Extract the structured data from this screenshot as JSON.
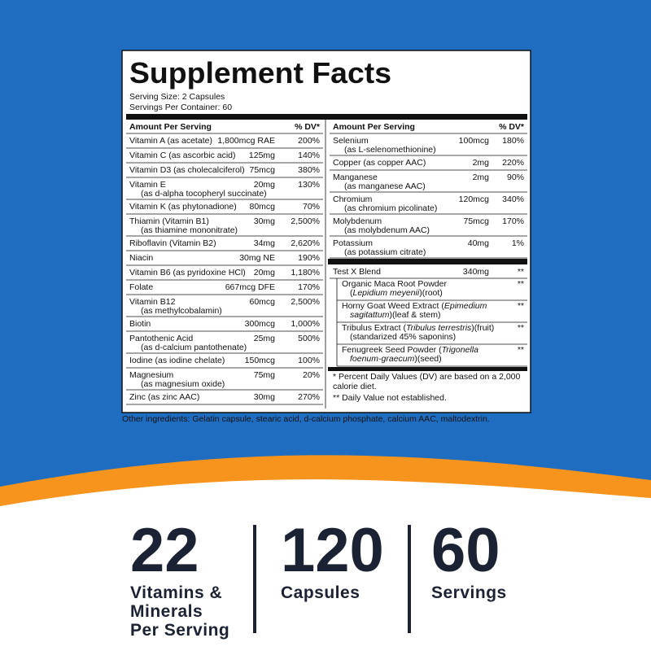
{
  "title": "Supplement Facts",
  "serving_size": "Serving Size: 2 Capsules",
  "servings_per_container": "Servings Per Container: 60",
  "left_column": {
    "header": [
      "Amount Per Serving",
      "% DV*"
    ],
    "rows": [
      {
        "name": "Vitamin A (as acetate)",
        "amount": "1,800mcg RAE",
        "dv": "200%"
      },
      {
        "name": "Vitamin C (as ascorbic acid)",
        "amount": "125mg",
        "dv": "140%"
      },
      {
        "name": "Vitamin D3 (as cholecalciferol)",
        "amount": "75mcg",
        "dv": "380%"
      },
      {
        "name": "Vitamin E",
        "sub": "(as d-alpha tocopheryl succinate)",
        "amount": "20mg",
        "dv": "130%"
      },
      {
        "name": "Vitamin K (as phytonadione)",
        "amount": "80mcg",
        "dv": "70%"
      },
      {
        "name": "Thiamin (Vitamin B1)",
        "sub": "(as thiamine mononitrate)",
        "amount": "30mg",
        "dv": "2,500%"
      },
      {
        "name": "Riboflavin (Vitamin B2)",
        "amount": "34mg",
        "dv": "2,620%"
      },
      {
        "name": "Niacin",
        "amount": "30mg NE",
        "dv": "190%"
      },
      {
        "name": "Vitamin B6 (as pyridoxine HCl)",
        "amount": "20mg",
        "dv": "1,180%"
      },
      {
        "name": "Folate",
        "amount": "667mcg DFE",
        "dv": "170%"
      },
      {
        "name": "Vitamin B12",
        "sub": "(as methylcobalamin)",
        "amount": "60mcg",
        "dv": "2,500%"
      },
      {
        "name": "Biotin",
        "amount": "300mcg",
        "dv": "1,000%"
      },
      {
        "name": "Pantothenic Acid",
        "sub": "(as d-calcium pantothenate)",
        "amount": "25mg",
        "dv": "500%"
      },
      {
        "name": "Iodine (as iodine chelate)",
        "amount": "150mcg",
        "dv": "100%"
      },
      {
        "name": "Magnesium",
        "sub": "(as magnesium oxide)",
        "amount": "75mg",
        "dv": "20%"
      },
      {
        "name": "Zinc (as zinc AAC)",
        "amount": "30mg",
        "dv": "270%"
      }
    ]
  },
  "right_column": {
    "header": [
      "Amount Per Serving",
      "% DV*"
    ],
    "rows": [
      {
        "name": "Selenium",
        "sub": "(as L-selenomethionine)",
        "amount": "100mcg",
        "dv": "180%"
      },
      {
        "name": "Copper (as copper AAC)",
        "amount": "2mg",
        "dv": "220%"
      },
      {
        "name": "Manganese",
        "sub": "(as manganese AAC)",
        "amount": "2mg",
        "dv": "90%"
      },
      {
        "name": "Chromium",
        "sub": "(as chromium picolinate)",
        "amount": "120mcg",
        "dv": "340%"
      },
      {
        "name": "Molybdenum",
        "sub": "(as molybdenum AAC)",
        "amount": "75mcg",
        "dv": "170%"
      },
      {
        "name": "Potassium",
        "sub": "(as potassium citrate)",
        "amount": "40mg",
        "dv": "1%"
      }
    ],
    "blend": {
      "name": "Test X Blend",
      "amount": "340mg",
      "dv": "**",
      "ingredients": [
        {
          "lines": [
            [
              {
                "t": "Organic Maca Root Powder"
              }
            ],
            [
              {
                "t": "("
              },
              {
                "t": "Lepidium meyenii",
                "i": true
              },
              {
                "t": ")(root)"
              }
            ]
          ],
          "dv": "**"
        },
        {
          "lines": [
            [
              {
                "t": "Horny Goat Weed Extract ("
              },
              {
                "t": "Epimedium",
                "i": true
              }
            ],
            [
              {
                "t": "sagitattum",
                "i": true
              },
              {
                "t": ")(leaf & stem)"
              }
            ]
          ],
          "dv": "**"
        },
        {
          "lines": [
            [
              {
                "t": "Tribulus Extract ("
              },
              {
                "t": "Tribulus terrestris",
                "i": true
              },
              {
                "t": ")(fruit)"
              }
            ],
            [
              {
                "t": "(standarized 45% saponins)"
              }
            ]
          ],
          "dv": "**"
        },
        {
          "lines": [
            [
              {
                "t": "Fenugreek Seed Powder ("
              },
              {
                "t": "Trigonella",
                "i": true
              }
            ],
            [
              {
                "t": "foenum-graecum",
                "i": true
              },
              {
                "t": ")(seed)"
              }
            ]
          ],
          "dv": "**"
        }
      ]
    },
    "footnotes": [
      "* Percent Daily Values (DV) are based on a 2,000",
      "calorie diet.",
      "** Daily Value not established."
    ]
  },
  "other_ingredients": "Other ingredients: Gelatin capsule, stearic acid, d-calcium phosphate, calcium AAC, maltodextrin.",
  "stats": [
    {
      "number": "22",
      "label": [
        "Vitamins &",
        "Minerals",
        "Per Serving"
      ]
    },
    {
      "number": "120",
      "label": [
        "Capsules"
      ]
    },
    {
      "number": "60",
      "label": [
        "Servings"
      ]
    }
  ]
}
